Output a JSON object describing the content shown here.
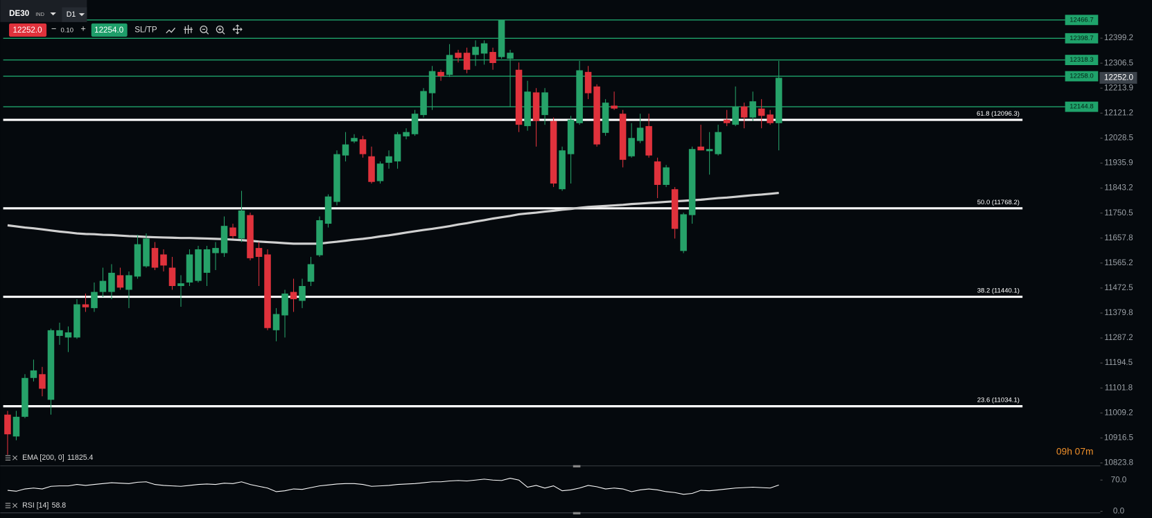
{
  "toolbar": {
    "symbol": "DE30",
    "market": "IND",
    "timeframe": "D1",
    "sell_price": "12252.0",
    "spread": "0.10",
    "buy_price": "12254.0",
    "sl_tp": "SL/TP"
  },
  "timer": "09h 07m",
  "chart_data": {
    "type": "candlestick",
    "up_color": "#26a269",
    "down_color": "#e0323c",
    "ylim": [
      10812.8,
      12540.7
    ],
    "yticks": [
      12399.2,
      12306.5,
      12213.9,
      12121.2,
      12028.5,
      11935.9,
      11843.2,
      11750.5,
      11657.8,
      11565.2,
      11472.5,
      11379.8,
      11287.2,
      11194.5,
      11101.8,
      11009.2,
      10916.5,
      10823.8
    ],
    "open": [
      11003,
      10922,
      10995,
      11139,
      11153,
      11058,
      11295,
      11289,
      11289,
      11412,
      11398,
      11458,
      11458,
      11520,
      11466,
      11515,
      11553,
      11621,
      11597,
      11548,
      11480,
      11493,
      11499,
      11529,
      11602,
      11602,
      11697,
      11656,
      11743,
      11621,
      11597,
      11316,
      11371,
      11458,
      11425,
      11496,
      11594,
      11711,
      11792,
      11964,
      12016,
      12024,
      11961,
      11869,
      11937,
      11942,
      12035,
      12043,
      12114,
      12195,
      12274,
      12263,
      12345,
      12345,
      12337,
      12342,
      12348,
      12329,
      12323,
      12282,
      12073,
      12198,
      12114,
      12092,
      11839,
      11969,
      12084,
      12274,
      12220,
      12048,
      12149,
      12119,
      11961,
      12018,
      12073,
      11942,
      11855,
      11839,
      11610,
      11743,
      11997,
      11980,
      11969,
      12097,
      12078,
      12146,
      12105,
      12138,
      12116,
      12084
    ],
    "high": [
      11017,
      11017,
      11153,
      11207,
      11180,
      11322,
      11344,
      11330,
      11431,
      11452,
      11493,
      11548,
      11561,
      11548,
      11534,
      11670,
      11675,
      11643,
      11616,
      11588,
      11520,
      11616,
      11629,
      11629,
      11643,
      11738,
      11711,
      11833,
      11752,
      11643,
      11616,
      11398,
      11466,
      11507,
      11507,
      11588,
      11738,
      11820,
      11983,
      12051,
      12043,
      12037,
      11997,
      11942,
      11983,
      12051,
      12065,
      12133,
      12214,
      12296,
      12282,
      12377,
      12356,
      12364,
      12391,
      12391,
      12364,
      12467,
      12356,
      12309,
      12241,
      12214,
      12214,
      12105,
      11997,
      12111,
      12315,
      12296,
      12228,
      12173,
      12201,
      12133,
      12084,
      12119,
      12119,
      11956,
      11929,
      11847,
      11752,
      11997,
      12078,
      12051,
      12078,
      12133,
      12220,
      12160,
      12201,
      12173,
      12133,
      12315
    ],
    "low": [
      10854,
      10908,
      10990,
      11126,
      11071,
      11003,
      11262,
      11235,
      11284,
      11384,
      11384,
      11439,
      11431,
      11466,
      11398,
      11507,
      11548,
      11539,
      11534,
      11466,
      11403,
      11480,
      11493,
      11480,
      11539,
      11588,
      11656,
      11643,
      11575,
      11480,
      11316,
      11275,
      11289,
      11384,
      11398,
      11480,
      11588,
      11697,
      11779,
      11942,
      12010,
      11956,
      11860,
      11860,
      11915,
      11915,
      12024,
      12037,
      12105,
      12133,
      12241,
      12255,
      12309,
      12269,
      12296,
      12301,
      12282,
      12323,
      12146,
      12051,
      12056,
      11997,
      12078,
      11847,
      11833,
      11860,
      12078,
      12173,
      11997,
      12037,
      12133,
      11920,
      11956,
      12010,
      11956,
      11806,
      11847,
      11656,
      11602,
      11711,
      11983,
      11893,
      11964,
      12073,
      12073,
      12065,
      12092,
      12065,
      12078,
      11983
    ],
    "close": [
      10930,
      10995,
      11139,
      11167,
      11099,
      11316,
      11316,
      11308,
      11412,
      11401,
      11458,
      11499,
      11529,
      11474,
      11520,
      11635,
      11656,
      11548,
      11556,
      11480,
      11490,
      11597,
      11616,
      11616,
      11621,
      11703,
      11665,
      11760,
      11583,
      11588,
      11324,
      11376,
      11452,
      11431,
      11480,
      11561,
      11724,
      11812,
      11969,
      12005,
      12029,
      11969,
      11866,
      11934,
      11961,
      12043,
      12051,
      12119,
      12203,
      12277,
      12258,
      12337,
      12326,
      12282,
      12367,
      12380,
      12307,
      12467,
      12345,
      12078,
      12201,
      12092,
      12198,
      11860,
      11983,
      12097,
      12280,
      12195,
      12005,
      12160,
      12138,
      11948,
      12029,
      12067,
      11964,
      11855,
      11920,
      11692,
      11746,
      11988,
      11983,
      11988,
      12051,
      12084,
      12146,
      12105,
      12165,
      12111,
      12084,
      12252
    ],
    "levels": [
      12466.7,
      12398.7,
      12318.3,
      {
        "value": 12258,
        "label": "12258.0"
      },
      12144.8
    ],
    "level_color": "#1fa36b",
    "fib_levels": [
      {
        "value": 12096.3,
        "label": "61.8 (12096.3)"
      },
      {
        "value": 11768.2,
        "label": "50.0 (11768.2)"
      },
      {
        "value": 11440.1,
        "label": "38.2 (11440.1)"
      },
      {
        "value": 11034.1,
        "label": "23.6 (11034.1)"
      }
    ],
    "fib_color": "#ffffff",
    "current_price": {
      "value": 12252,
      "label": "12252.0"
    },
    "ema": {
      "name": "EMA [200, 0]",
      "last": 11825.4,
      "color": "#d0d0d0",
      "values": [
        11705,
        11701,
        11697,
        11694,
        11690,
        11686,
        11682,
        11679,
        11675,
        11673,
        11672,
        11670,
        11669,
        11667,
        11665,
        11664,
        11662,
        11661,
        11660,
        11659,
        11658,
        11658,
        11657,
        11656,
        11655,
        11654,
        11652,
        11650,
        11648,
        11645,
        11643,
        11641,
        11639,
        11637,
        11637,
        11637,
        11637,
        11641,
        11644,
        11648,
        11652,
        11655,
        11659,
        11664,
        11668,
        11673,
        11678,
        11683,
        11688,
        11692,
        11697,
        11702,
        11708,
        11713,
        11719,
        11724,
        11730,
        11735,
        11740,
        11746,
        11749,
        11752,
        11756,
        11759,
        11763,
        11766,
        11770,
        11773,
        11775,
        11777,
        11779,
        11781,
        11784,
        11786,
        11788,
        11790,
        11792,
        11794,
        11796,
        11798,
        11800,
        11803,
        11806,
        11808,
        11811,
        11814,
        11817,
        11819,
        11822,
        11825.4
      ]
    },
    "rsi": {
      "name": "RSI [14]",
      "last": 58.8,
      "color": "#ffffff",
      "ylim": [
        -15,
        100
      ],
      "yticks": [
        {
          "value": 70,
          "label": "70.0"
        },
        {
          "value": 0,
          "label": "0.0"
        }
      ],
      "values": [
        47,
        45,
        50,
        52,
        50,
        56,
        57,
        57,
        60,
        58,
        60,
        62,
        64,
        63,
        62,
        65,
        66,
        60,
        58,
        57,
        56,
        58,
        60,
        61,
        60,
        63,
        62,
        66,
        60,
        56,
        52,
        44,
        46,
        50,
        49,
        53,
        57,
        59,
        61,
        62,
        62,
        60,
        56,
        57,
        58,
        60,
        61,
        62,
        64,
        66,
        66,
        68,
        69,
        68,
        70,
        72,
        70,
        69,
        74,
        70,
        54,
        58,
        52,
        57,
        46,
        48,
        52,
        58,
        55,
        50,
        52,
        50,
        44,
        48,
        50,
        48,
        44,
        42,
        38,
        40,
        47,
        46,
        48,
        50,
        52,
        53,
        54,
        53,
        52,
        58.8
      ]
    }
  }
}
